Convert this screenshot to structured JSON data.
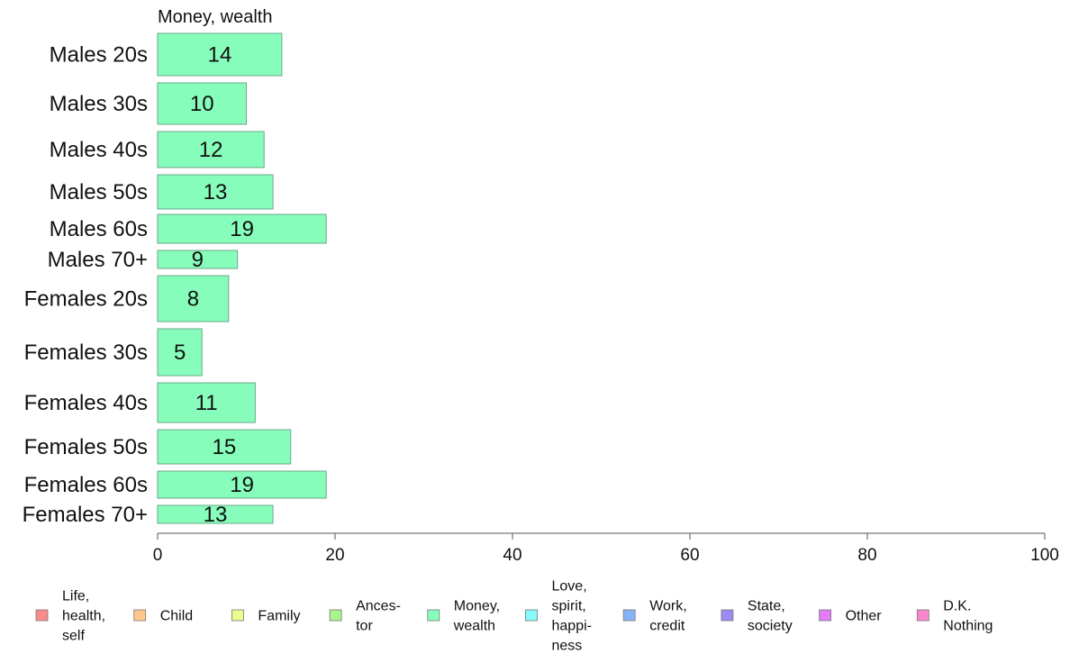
{
  "chart_data": {
    "type": "bar",
    "orientation": "horizontal",
    "title": "Money, wealth",
    "categories": [
      "Males 20s",
      "Males 30s",
      "Males 40s",
      "Males 50s",
      "Males 60s",
      "Males 70+",
      "Females 20s",
      "Females 30s",
      "Females 40s",
      "Females 50s",
      "Females 60s",
      "Females 70+"
    ],
    "series": [
      {
        "name": "Money, wealth",
        "values": [
          14,
          10,
          12,
          13,
          19,
          9,
          8,
          5,
          11,
          15,
          19,
          13
        ],
        "color": "#87fdbb"
      }
    ],
    "xlim": [
      0,
      100
    ],
    "xticks": [
      0,
      20,
      40,
      60,
      80,
      100
    ],
    "grid": false,
    "legend_position": "bottom",
    "legend": [
      {
        "label": "Life,\nhealth,\nself",
        "color": "#fa8b8b"
      },
      {
        "label": "Child",
        "color": "#fdc88a"
      },
      {
        "label": "Family",
        "color": "#eefb8f"
      },
      {
        "label": "Ances-\ntor",
        "color": "#a7f58b"
      },
      {
        "label": "Money,\nwealth",
        "color": "#87fdbb"
      },
      {
        "label": "Love,\nspirit,\nhappi-\nness",
        "color": "#86fafd"
      },
      {
        "label": "Work,\ncredit",
        "color": "#86b4f6"
      },
      {
        "label": "State,\nsociety",
        "color": "#9a8cf4"
      },
      {
        "label": "Other",
        "color": "#e57cf6"
      },
      {
        "label": "D.K.\nNothing",
        "color": "#f887d0"
      }
    ]
  }
}
